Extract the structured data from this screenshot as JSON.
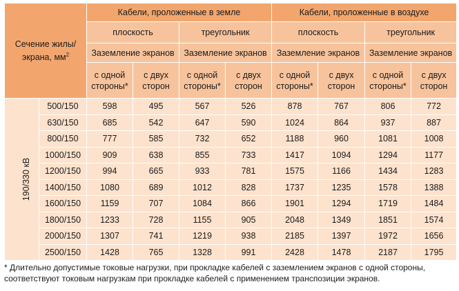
{
  "header": {
    "section_label": "Сечение жилы/экрана, мм",
    "section_sup": "2",
    "ground_group": "Кабели, проложенные в земле",
    "air_group": "Кабели, проложенные в воздухе",
    "flat": "плоскость",
    "triangle": "треугольник",
    "grounding": "Заземление экранов",
    "one_side": "с одной стороны*",
    "two_sides": "с двух сторон"
  },
  "voltage_label": "190/330 кВ",
  "rows": [
    {
      "section": "500/150",
      "v": [
        "598",
        "495",
        "567",
        "526",
        "878",
        "767",
        "806",
        "772"
      ]
    },
    {
      "section": "630/150",
      "v": [
        "685",
        "542",
        "647",
        "590",
        "1024",
        "864",
        "937",
        "887"
      ]
    },
    {
      "section": "800/150",
      "v": [
        "777",
        "585",
        "732",
        "652",
        "1188",
        "960",
        "1081",
        "1008"
      ]
    },
    {
      "section": "1000/150",
      "v": [
        "909",
        "638",
        "855",
        "733",
        "1417",
        "1094",
        "1294",
        "1177"
      ]
    },
    {
      "section": "1200/150",
      "v": [
        "994",
        "665",
        "933",
        "781",
        "1575",
        "1166",
        "1434",
        "1283"
      ]
    },
    {
      "section": "1400/150",
      "v": [
        "1080",
        "689",
        "1012",
        "828",
        "1737",
        "1235",
        "1578",
        "1388"
      ]
    },
    {
      "section": "1600/150",
      "v": [
        "1159",
        "707",
        "1084",
        "866",
        "1901",
        "1294",
        "1719",
        "1484"
      ]
    },
    {
      "section": "1800/150",
      "v": [
        "1233",
        "728",
        "1155",
        "905",
        "2048",
        "1349",
        "1851",
        "1574"
      ]
    },
    {
      "section": "2000/150",
      "v": [
        "1307",
        "741",
        "1219",
        "938",
        "2185",
        "1397",
        "1972",
        "1656"
      ]
    },
    {
      "section": "2500/150",
      "v": [
        "1428",
        "765",
        "1328",
        "991",
        "2428",
        "1478",
        "2187",
        "1795"
      ]
    }
  ],
  "footnote": "* Длительно допустимые токовые нагрузки, при прокладке кабелей с заземлением экранов с одной стороны, соответствуют токовым нагрузкам при прокладке кабелей с применением транспозиции экранов."
}
